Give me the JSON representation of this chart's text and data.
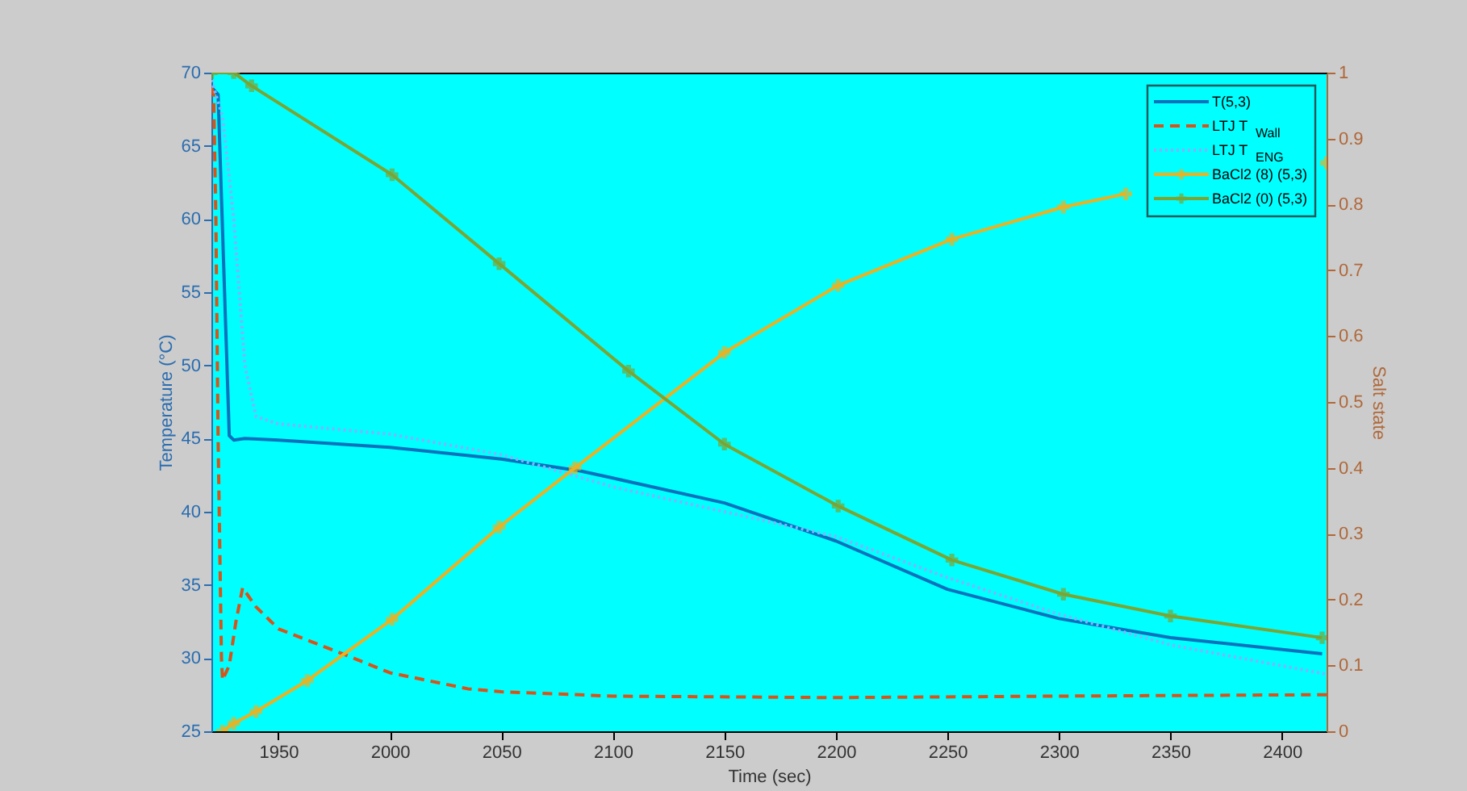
{
  "chart_data": {
    "type": "line",
    "xlabel": "Time (sec)",
    "ylabel": "Temperature (°C)",
    "y2label": "Salt state",
    "xlim": [
      1920,
      2420
    ],
    "xticks": [
      1950,
      2000,
      2050,
      2100,
      2150,
      2200,
      2250,
      2300,
      2350,
      2400
    ],
    "ylim": [
      25,
      70
    ],
    "yticks": [
      25,
      30,
      35,
      40,
      45,
      50,
      55,
      60,
      65,
      70
    ],
    "y2lim": [
      0,
      1
    ],
    "y2ticks": [
      0,
      0.1,
      0.2,
      0.3,
      0.4,
      0.5,
      0.6,
      0.7,
      0.8,
      0.9,
      1
    ],
    "grid": false,
    "legend": "top right",
    "series": [
      {
        "name": "T(5,3)",
        "color": "#0072bd",
        "axis": "y",
        "line_style": "solid",
        "marker": "none",
        "x": [
          1920,
          1923,
          1928,
          1930,
          1935,
          1950,
          2000,
          2050,
          2085,
          2100,
          2150,
          2200,
          2250,
          2300,
          2350,
          2418
        ],
        "values": [
          69,
          68.5,
          45.2,
          44.9,
          45,
          44.9,
          44.4,
          43.6,
          42.8,
          42.3,
          40.6,
          38.0,
          34.7,
          32.7,
          31.4,
          30.3
        ]
      },
      {
        "name": "LTJ T$_{Wall}$",
        "color": "#d95319",
        "axis": "y",
        "line_style": "dashed",
        "marker": "none",
        "x": [
          1920,
          1921,
          1922,
          1923,
          1924.5,
          1925,
          1928,
          1931,
          1934,
          1940,
          1950,
          1982,
          2000,
          2035,
          2050,
          2100,
          2200,
          2300,
          2420
        ],
        "values": [
          69,
          68.5,
          60,
          45,
          30,
          28.5,
          29.5,
          32.5,
          34.8,
          33.5,
          32,
          30.1,
          29,
          27.9,
          27.7,
          27.4,
          27.3,
          27.4,
          27.5
        ]
      },
      {
        "name": "LTJ T$_{ENG}$",
        "color": "#7fb2ff",
        "axis": "y",
        "line_style": "dotted",
        "marker": "none",
        "x": [
          1920,
          1925,
          1930,
          1935,
          1940,
          1950,
          2000,
          2050,
          2100,
          2150,
          2200,
          2250,
          2300,
          2350,
          2420
        ],
        "values": [
          69.5,
          67,
          60,
          50,
          46.5,
          46,
          45.3,
          43.9,
          41.7,
          40.0,
          38.3,
          35.5,
          33,
          30.9,
          28.9
        ]
      },
      {
        "name": "BaCl2 (8) (5,3)",
        "color": "#edb120",
        "axis": "y2",
        "line_style": "solid",
        "marker": "cross",
        "x": [
          1925,
          1930,
          1940,
          1963,
          2001,
          2049,
          2083,
          2150,
          2201,
          2252,
          2302,
          2330,
          2350,
          2375,
          2400,
          2420
        ],
        "values": [
          0,
          0.012,
          0.03,
          0.077,
          0.17,
          0.31,
          0.4,
          0.575,
          0.677,
          0.747,
          0.796,
          0.816,
          null,
          null,
          null,
          0.863
        ]
      },
      {
        "name": "BaCl2 (0) (5,3)",
        "color": "#7aa534",
        "axis": "y2",
        "line_style": "solid",
        "marker": "cross",
        "x": [
          1920,
          1930,
          1938,
          2001,
          2049,
          2107,
          2150,
          2201,
          2252,
          2302,
          2350,
          2418
        ],
        "values": [
          1,
          1,
          0.98,
          0.845,
          0.71,
          0.547,
          0.436,
          0.342,
          0.26,
          0.208,
          0.175,
          0.142
        ]
      }
    ]
  }
}
